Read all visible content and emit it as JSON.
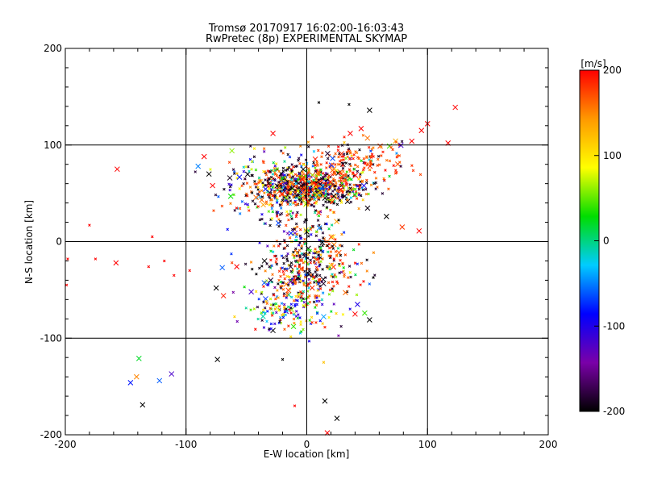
{
  "chart_data": {
    "type": "scatter",
    "title": "Tromsø 20170917 16:02:00-16:03:43",
    "subtitle": "RwPretec (8p) EXPERIMENTAL SKYMAP",
    "xlabel": "E-W location [km]",
    "ylabel": "N-S location [km]",
    "xlim": [
      -200,
      200
    ],
    "ylim": [
      -200,
      200
    ],
    "xticks": [
      "-200",
      "-100",
      "0",
      "100",
      "200"
    ],
    "yticks": [
      "200",
      "100",
      "0",
      "-100",
      "-200"
    ],
    "grid": true,
    "colorbar": {
      "label": "[m/s]",
      "range": [
        -200,
        200
      ],
      "ticks": [
        "200",
        "100",
        "0",
        "-100",
        "-200"
      ],
      "colormap": [
        "#000000",
        "#7a00a8",
        "#0000ff",
        "#00ccff",
        "#00dd00",
        "#ffff00",
        "#ff9900",
        "#ff0000"
      ]
    },
    "marker_note": "x = large cross markers, + = small markers; color = velocity",
    "points": [
      {
        "x": -157,
        "y": 75,
        "v": 200,
        "m": "x"
      },
      {
        "x": -158,
        "y": -22,
        "v": 200,
        "m": "x"
      },
      {
        "x": -141,
        "y": -140,
        "v": 150,
        "m": "x"
      },
      {
        "x": -139,
        "y": -121,
        "v": 20,
        "m": "x"
      },
      {
        "x": -146,
        "y": -146,
        "v": -80,
        "m": "x"
      },
      {
        "x": -122,
        "y": -144,
        "v": -60,
        "m": "x"
      },
      {
        "x": -112,
        "y": -137,
        "v": -120,
        "m": "x"
      },
      {
        "x": -136,
        "y": -169,
        "v": -200,
        "m": "x"
      },
      {
        "x": -74,
        "y": -122,
        "v": -200,
        "m": "x"
      },
      {
        "x": -85,
        "y": 88,
        "v": 200,
        "m": "x"
      },
      {
        "x": -90,
        "y": 78,
        "v": -50,
        "m": "x"
      },
      {
        "x": -81,
        "y": 70,
        "v": -200,
        "m": "x"
      },
      {
        "x": -78,
        "y": 58,
        "v": 200,
        "m": "x"
      },
      {
        "x": -62,
        "y": 94,
        "v": 60,
        "m": "x"
      },
      {
        "x": -63,
        "y": 47,
        "v": 30,
        "m": "x"
      },
      {
        "x": -28,
        "y": 112,
        "v": 200,
        "m": "x"
      },
      {
        "x": -58,
        "y": -26,
        "v": 200,
        "m": "x"
      },
      {
        "x": -70,
        "y": -27,
        "v": -60,
        "m": "x"
      },
      {
        "x": -75,
        "y": -48,
        "v": -200,
        "m": "x"
      },
      {
        "x": -69,
        "y": -56,
        "v": 190,
        "m": "x"
      },
      {
        "x": -46,
        "y": -52,
        "v": -120,
        "m": "x"
      },
      {
        "x": 36,
        "y": 112,
        "v": 200,
        "m": "x"
      },
      {
        "x": 45,
        "y": 117,
        "v": 200,
        "m": "x"
      },
      {
        "x": 52,
        "y": 136,
        "v": -200,
        "m": "x"
      },
      {
        "x": 87,
        "y": 104,
        "v": 200,
        "m": "x"
      },
      {
        "x": 95,
        "y": 115,
        "v": 200,
        "m": "x"
      },
      {
        "x": 100,
        "y": 122,
        "v": 200,
        "m": "x"
      },
      {
        "x": 117,
        "y": 102,
        "v": 200,
        "m": "x"
      },
      {
        "x": 123,
        "y": 139,
        "v": 200,
        "m": "x"
      },
      {
        "x": 66,
        "y": 26,
        "v": -200,
        "m": "x"
      },
      {
        "x": 79,
        "y": 15,
        "v": 180,
        "m": "x"
      },
      {
        "x": 93,
        "y": 11,
        "v": 200,
        "m": "x"
      },
      {
        "x": 48,
        "y": -74,
        "v": 40,
        "m": "x"
      },
      {
        "x": 52,
        "y": -81,
        "v": -200,
        "m": "x"
      },
      {
        "x": 40,
        "y": -75,
        "v": 200,
        "m": "x"
      },
      {
        "x": 42,
        "y": -65,
        "v": -100,
        "m": "x"
      },
      {
        "x": 15,
        "y": -165,
        "v": -200,
        "m": "x"
      },
      {
        "x": 25,
        "y": -183,
        "v": -200,
        "m": "x"
      },
      {
        "x": 17,
        "y": -198,
        "v": 200,
        "m": "x"
      },
      {
        "x": -28,
        "y": -92,
        "v": -200,
        "m": "x"
      },
      {
        "x": -10,
        "y": -40,
        "v": 200,
        "m": "x"
      },
      {
        "x": 0,
        "y": 10,
        "v": -200,
        "m": "x"
      },
      {
        "x": 20,
        "y": 60,
        "v": 80,
        "m": "x"
      },
      {
        "x": -20,
        "y": 65,
        "v": -200,
        "m": "x"
      },
      {
        "x": 15,
        "y": 45,
        "v": -200,
        "m": "x"
      },
      {
        "x": -35,
        "y": -20,
        "v": -200,
        "m": "x"
      },
      {
        "x": 30,
        "y": 80,
        "v": -200,
        "m": "x"
      },
      {
        "x": -5,
        "y": 70,
        "v": 150,
        "m": "x"
      },
      {
        "x": 10,
        "y": 30,
        "v": 200,
        "m": "x"
      },
      {
        "x": -15,
        "y": -55,
        "v": 0,
        "m": "x"
      },
      {
        "x": -180,
        "y": 17,
        "v": 200,
        "m": "+"
      },
      {
        "x": -175,
        "y": -18,
        "v": 200,
        "m": "+"
      },
      {
        "x": -128,
        "y": 5,
        "v": 200,
        "m": "+"
      },
      {
        "x": -131,
        "y": -26,
        "v": 200,
        "m": "+"
      },
      {
        "x": -118,
        "y": -20,
        "v": 200,
        "m": "+"
      },
      {
        "x": -110,
        "y": -35,
        "v": 200,
        "m": "+"
      },
      {
        "x": -198,
        "y": -18,
        "v": 200,
        "m": "+"
      },
      {
        "x": -199,
        "y": -45,
        "v": 200,
        "m": "+"
      },
      {
        "x": -97,
        "y": -30,
        "v": 200,
        "m": "+"
      },
      {
        "x": 2,
        "y": -103,
        "v": -100,
        "m": "+"
      },
      {
        "x": 14,
        "y": -125,
        "v": 120,
        "m": "+"
      },
      {
        "x": -10,
        "y": -170,
        "v": 200,
        "m": "+"
      },
      {
        "x": 10,
        "y": 144,
        "v": -200,
        "m": "+"
      },
      {
        "x": 35,
        "y": 142,
        "v": -200,
        "m": "+"
      },
      {
        "x": -20,
        "y": -122,
        "v": -200,
        "m": "+"
      }
    ]
  }
}
